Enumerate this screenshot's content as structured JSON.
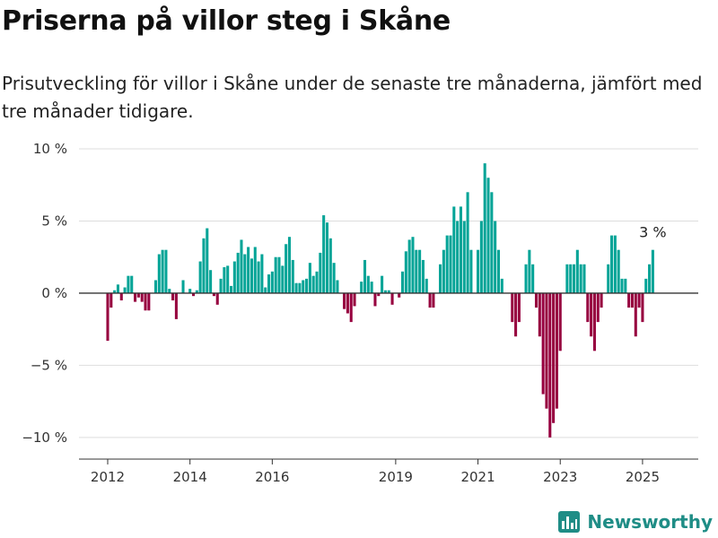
{
  "header": {
    "title": "Priserna på villor steg i Skåne",
    "subtitle": "Prisutveckling för villor i Skåne under de senaste tre månaderna, jämfört med tre månader tidigare."
  },
  "brand": {
    "name": "Newsworthy",
    "icon": "bar-chart-icon",
    "color": "#1f8d86"
  },
  "chart_data": {
    "type": "bar",
    "x_start": "2012-01",
    "x_tick_labels": [
      "2012",
      "2014",
      "2016",
      "2019",
      "2021",
      "2023",
      "2025"
    ],
    "x_tick_positions": [
      "2012-01",
      "2014-01",
      "2016-01",
      "2019-01",
      "2021-01",
      "2023-01",
      "2025-01"
    ],
    "y_ticks": [
      {
        "value": 10,
        "label": "10 %"
      },
      {
        "value": 5,
        "label": "5 %"
      },
      {
        "value": 0,
        "label": "0 %"
      },
      {
        "value": -5,
        "label": "−5 %"
      },
      {
        "value": -10,
        "label": "−10 %"
      }
    ],
    "ylim": [
      -11.5,
      10.5
    ],
    "colors": {
      "positive": "#04a497",
      "negative": "#97003f"
    },
    "annotation": {
      "label": "3 %"
    },
    "values": [
      -3.3,
      -1,
      0.2,
      0.6,
      -0.5,
      0.4,
      1.2,
      1.2,
      -0.6,
      -0.3,
      -0.6,
      -1.2,
      -1.2,
      0,
      0.9,
      2.7,
      3.0,
      3.0,
      0.3,
      -0.5,
      -1.8,
      0,
      0.9,
      0,
      0.3,
      -0.2,
      0.2,
      2.2,
      3.8,
      4.5,
      1.6,
      -0.2,
      -0.8,
      1.0,
      1.8,
      1.9,
      0.5,
      2.2,
      2.8,
      3.7,
      2.7,
      3.2,
      2.4,
      3.2,
      2.2,
      2.7,
      0.4,
      1.3,
      1.5,
      2.5,
      2.5,
      1.9,
      3.4,
      3.9,
      2.3,
      0.7,
      0.7,
      0.9,
      1.0,
      2.1,
      1.2,
      1.5,
      2.8,
      5.4,
      4.9,
      3.8,
      2.1,
      0.9,
      0,
      -1.1,
      -1.4,
      -2.0,
      -0.9,
      0,
      0.8,
      2.3,
      1.2,
      0.8,
      -0.9,
      -0.2,
      1.2,
      0.2,
      0.2,
      -0.8,
      0,
      -0.3,
      1.5,
      2.9,
      3.7,
      3.9,
      3.0,
      3.0,
      2.3,
      1.0,
      -1.0,
      -1.0,
      0,
      2.0,
      3.0,
      4.0,
      4.0,
      6.0,
      5.0,
      6.0,
      5.0,
      7.0,
      3.0,
      0,
      3.0,
      5.0,
      9.0,
      8.0,
      7.0,
      5.0,
      3.0,
      1.0,
      0,
      0,
      -2.0,
      -3.0,
      -2.0,
      0,
      2.0,
      3.0,
      2.0,
      -1.0,
      -3.0,
      -7.0,
      -8.0,
      -10.0,
      -9.0,
      -8.0,
      -4.0,
      0,
      2.0,
      2.0,
      2.0,
      3.0,
      2.0,
      2.0,
      -2.0,
      -3.0,
      -4.0,
      -2.0,
      -1.0,
      0,
      2.0,
      4.0,
      4.0,
      3.0,
      1.0,
      1.0,
      -1.0,
      -1.0,
      -3.0,
      -1.0,
      -2.0,
      1.0,
      2.0,
      3.0
    ]
  }
}
